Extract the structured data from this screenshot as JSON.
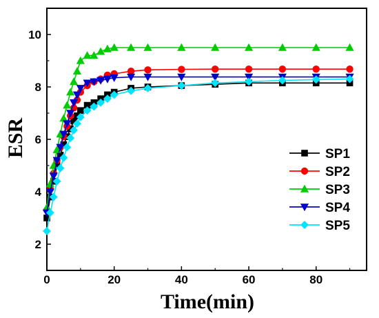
{
  "chart_data": {
    "type": "line",
    "xlabel": "Time(min)",
    "ylabel": "ESR",
    "xlim": [
      0,
      95
    ],
    "ylim": [
      1.0,
      11.0
    ],
    "xticks": [
      0,
      20,
      40,
      60,
      80
    ],
    "yticks": [
      2,
      4,
      6,
      8,
      10
    ],
    "grid": false,
    "legend": "right",
    "series": [
      {
        "name": "SP1",
        "color": "#000000",
        "marker": "square",
        "x": [
          0,
          1,
          2,
          3,
          4,
          5,
          6,
          7,
          8,
          9,
          10,
          12,
          14,
          16,
          18,
          20,
          25,
          30,
          40,
          50,
          60,
          70,
          80,
          90
        ],
        "y": [
          3.0,
          3.8,
          4.4,
          5.0,
          5.4,
          5.8,
          6.1,
          6.4,
          6.7,
          6.9,
          7.1,
          7.3,
          7.4,
          7.55,
          7.7,
          7.8,
          7.95,
          8.0,
          8.05,
          8.1,
          8.15,
          8.15,
          8.15,
          8.15
        ]
      },
      {
        "name": "SP2",
        "color": "#ff0000",
        "marker": "circle",
        "x": [
          0,
          1,
          2,
          3,
          4,
          5,
          6,
          7,
          8,
          9,
          10,
          12,
          14,
          16,
          18,
          20,
          25,
          30,
          40,
          50,
          60,
          70,
          80,
          90
        ],
        "y": [
          3.3,
          4.1,
          4.7,
          5.2,
          5.7,
          6.1,
          6.5,
          6.9,
          7.2,
          7.5,
          7.8,
          8.05,
          8.2,
          8.3,
          8.45,
          8.5,
          8.6,
          8.65,
          8.67,
          8.68,
          8.68,
          8.68,
          8.68,
          8.68
        ]
      },
      {
        "name": "SP3",
        "color": "#00cc00",
        "marker": "triangle-up",
        "x": [
          0,
          1,
          2,
          3,
          4,
          5,
          6,
          7,
          8,
          9,
          10,
          12,
          14,
          16,
          18,
          20,
          25,
          30,
          40,
          50,
          60,
          70,
          80,
          90
        ],
        "y": [
          3.4,
          4.3,
          5.0,
          5.6,
          6.2,
          6.8,
          7.3,
          7.8,
          8.2,
          8.6,
          9.0,
          9.2,
          9.2,
          9.35,
          9.45,
          9.5,
          9.5,
          9.5,
          9.5,
          9.5,
          9.5,
          9.5,
          9.5,
          9.5
        ]
      },
      {
        "name": "SP4",
        "color": "#0000cc",
        "marker": "triangle-down",
        "x": [
          0,
          1,
          2,
          3,
          4,
          5,
          6,
          7,
          8,
          9,
          10,
          12,
          14,
          16,
          18,
          20,
          25,
          30,
          40,
          50,
          60,
          70,
          80,
          90
        ],
        "y": [
          3.2,
          4.0,
          4.6,
          5.2,
          5.7,
          6.2,
          6.6,
          7.0,
          7.4,
          7.7,
          7.95,
          8.15,
          8.2,
          8.25,
          8.3,
          8.35,
          8.38,
          8.38,
          8.38,
          8.38,
          8.38,
          8.38,
          8.38,
          8.38
        ]
      },
      {
        "name": "SP5",
        "color": "#00e5ff",
        "marker": "diamond",
        "x": [
          0,
          1,
          2,
          3,
          4,
          5,
          6,
          7,
          8,
          9,
          10,
          12,
          14,
          16,
          18,
          20,
          25,
          30,
          40,
          50,
          60,
          70,
          80,
          90
        ],
        "y": [
          2.5,
          3.2,
          3.8,
          4.4,
          4.9,
          5.3,
          5.7,
          6.05,
          6.35,
          6.6,
          6.85,
          7.1,
          7.25,
          7.4,
          7.55,
          7.7,
          7.85,
          7.95,
          8.05,
          8.15,
          8.2,
          8.25,
          8.28,
          8.3
        ]
      }
    ]
  }
}
